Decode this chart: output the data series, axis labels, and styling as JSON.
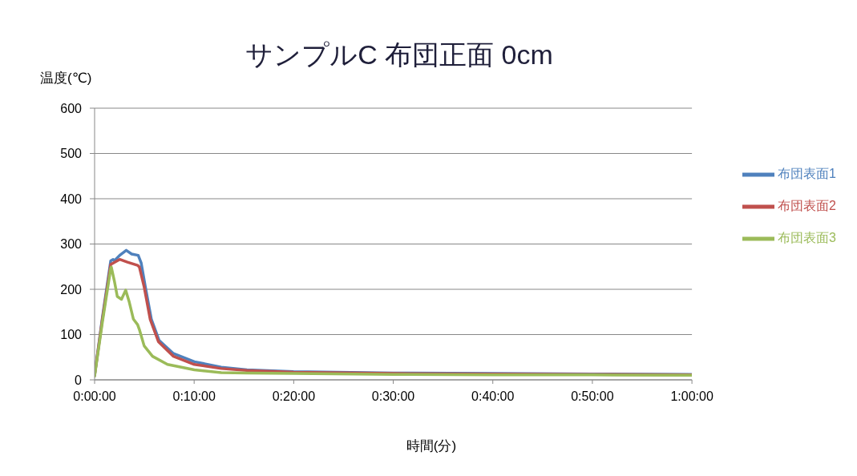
{
  "chart_data": {
    "type": "line",
    "title": "サンプルC 布団正面 0cm",
    "xlabel": "時間(分)",
    "ylabel": "温度(℃)",
    "xlim": [
      0,
      1
    ],
    "xticks": [
      {
        "value": 0,
        "label": "0:00:00"
      },
      {
        "value": 0.1666667,
        "label": "0:10:00"
      },
      {
        "value": 0.3333333,
        "label": "0:20:00"
      },
      {
        "value": 0.5,
        "label": "0:30:00"
      },
      {
        "value": 0.6666667,
        "label": "0:40:00"
      },
      {
        "value": 0.8333333,
        "label": "0:50:00"
      },
      {
        "value": 1,
        "label": "1:00:00"
      }
    ],
    "ylim": [
      0,
      600
    ],
    "yticks": [
      0,
      100,
      200,
      300,
      400,
      500,
      600
    ],
    "grid": "y",
    "legend": "right",
    "series": [
      {
        "name": "布団表面1",
        "color": "#4f81bd",
        "x": [
          0,
          0.013,
          0.027,
          0.031,
          0.033,
          0.042,
          0.053,
          0.062,
          0.073,
          0.078,
          0.085,
          0.095,
          0.108,
          0.132,
          0.167,
          0.212,
          0.255,
          0.333,
          0.5,
          0.667,
          0.833,
          1
        ],
        "values": [
          10,
          137,
          263,
          266,
          263,
          275,
          286,
          278,
          275,
          258,
          205,
          134,
          87,
          58,
          40,
          28,
          22,
          18,
          15,
          14,
          13,
          12
        ]
      },
      {
        "name": "布団表面2",
        "color": "#c0504d",
        "x": [
          0,
          0.013,
          0.027,
          0.042,
          0.055,
          0.072,
          0.075,
          0.083,
          0.093,
          0.107,
          0.132,
          0.167,
          0.212,
          0.255,
          0.333,
          0.5,
          0.667,
          0.833,
          1
        ],
        "values": [
          10,
          133,
          255,
          266,
          260,
          253,
          249,
          205,
          134,
          84,
          52,
          34,
          25,
          21,
          17,
          14,
          13,
          12,
          11
        ]
      },
      {
        "name": "布団表面3",
        "color": "#9bbb59",
        "x": [
          0,
          0.013,
          0.027,
          0.028,
          0.033,
          0.038,
          0.045,
          0.052,
          0.058,
          0.065,
          0.072,
          0.075,
          0.083,
          0.097,
          0.122,
          0.167,
          0.212,
          0.255,
          0.333,
          0.5,
          0.667,
          0.833,
          1
        ],
        "values": [
          8,
          127,
          246,
          249,
          219,
          184,
          178,
          198,
          172,
          134,
          122,
          111,
          75,
          52,
          34,
          22,
          16,
          15,
          14,
          12,
          11,
          11,
          10
        ]
      }
    ]
  }
}
